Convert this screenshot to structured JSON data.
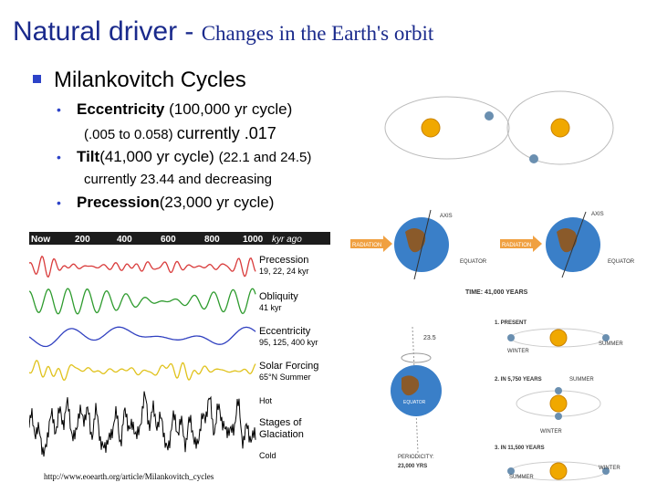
{
  "title": {
    "main": "Natural driver - ",
    "sub": "Changes in the Earth's orbit"
  },
  "bullet1": "Milankovitch Cycles",
  "ecc": {
    "bold": "Eccentricity",
    "rest": " (100,000 yr cycle)",
    "range": "(.005 to 0.058) ",
    "currently": "currently .017"
  },
  "tilt": {
    "bold": "Tilt",
    "rest": "(41,000 yr cycle) ",
    "range": "(22.1 and 24.5)",
    "currently": "currently 23.44 and decreasing"
  },
  "prec": {
    "bold": "Precession",
    "rest": "(23,000 yr cycle)"
  },
  "chart": {
    "top_labels": [
      "Now",
      "200",
      "400",
      "600",
      "800",
      "1000",
      "kyr ago"
    ],
    "series": [
      {
        "name": "Precession",
        "detail": "19, 22, 24 kyr",
        "color": "#d93b3b"
      },
      {
        "name": "Obliquity",
        "detail": "41 kyr",
        "color": "#2e9b2e"
      },
      {
        "name": "Eccentricity",
        "detail": "95, 125, 400 kyr",
        "color": "#3040c0"
      },
      {
        "name": "Solar Forcing",
        "detail": "65°N Summer",
        "color": "#e0c21c"
      },
      {
        "name": "Stages of Glaciation",
        "detail": "",
        "color": "#000000"
      }
    ],
    "hot": "Hot",
    "cold": "Cold",
    "url": "http://www.eoearth.org/article/Milankovitch_cycles"
  },
  "right": {
    "axis_a": "AXIS",
    "axis_b": "AXIS",
    "radiation_a": "RADIATION",
    "radiation_b": "RADIATION",
    "equator_a": "EQUATOR",
    "equator_b": "EQUATOR",
    "time": "TIME: 41,000 YEARS",
    "deg": "23.5",
    "present": "1. PRESENT",
    "winter1": "WINTER",
    "summer1": "SUMMER",
    "in5750": "2. IN 5,750 YEARS",
    "summer2": "SUMMER",
    "winter2": "WINTER",
    "in11500": "3. IN 11,500 YEARS",
    "summer3": "SUMMER",
    "winter3": "WINTER",
    "periodicity": "PERIODICITY:",
    "years23000": "23,000 YRS",
    "equator_c": "EQUATOR"
  },
  "colors": {
    "title": "#1a2a8c",
    "bullet": "#2d43c8",
    "sun": "#f0a800",
    "ocean": "#3a7fc8",
    "land": "#8a5a2a"
  }
}
